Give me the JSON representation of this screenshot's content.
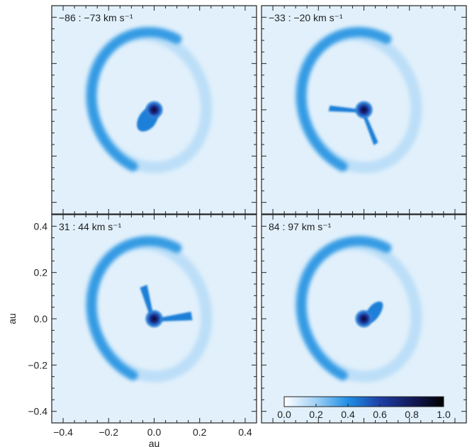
{
  "chart_data": {
    "type": "heatmap",
    "xlabel": "au",
    "ylabel": "au",
    "xlim": [
      -0.45,
      0.45
    ],
    "ylim": [
      -0.45,
      0.45
    ],
    "x_ticks": [
      -0.4,
      -0.2,
      0.0,
      0.2,
      0.4
    ],
    "y_ticks": [
      -0.4,
      -0.2,
      0.0,
      0.2,
      0.4
    ],
    "x_tick_labels": [
      "−0.4",
      "−0.2",
      "0.0",
      "0.2",
      "0.4"
    ],
    "y_tick_labels": [
      "−0.4",
      "−0.2",
      "0.0",
      "0.2",
      "0.4"
    ],
    "panels": [
      {
        "label": "−86 : −73 km s⁻¹",
        "position": "top-left"
      },
      {
        "label": "−33 : −20 km s⁻¹",
        "position": "top-right"
      },
      {
        "label": "31 : 44 km s⁻¹",
        "position": "bottom-left"
      },
      {
        "label": "84 : 97 km s⁻¹",
        "position": "bottom-right"
      }
    ],
    "colorbar": {
      "range": [
        0.0,
        1.0
      ],
      "ticks": [
        0.0,
        0.2,
        0.4,
        0.6,
        0.8,
        1.0
      ],
      "tick_labels": [
        "0.0",
        "0.2",
        "0.4",
        "0.6",
        "0.8",
        "1.0"
      ],
      "placement": "bottom-right panel, bottom"
    },
    "colors": {
      "background": "#e1f0fb",
      "ring": "#1b8fe0",
      "core": "#0a0a2e",
      "frame": "#222222"
    }
  }
}
